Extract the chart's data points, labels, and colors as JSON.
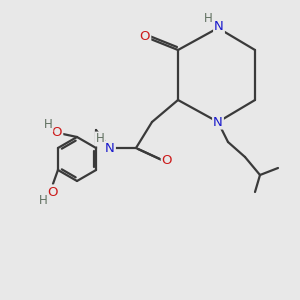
{
  "bg_color": "#e8e8e8",
  "atom_colors": {
    "C": "#3a3a3a",
    "N": "#1a1acc",
    "O": "#cc1a1a",
    "H": "#607060"
  },
  "bond_color": "#3a3a3a",
  "line_width": 1.6,
  "figsize": [
    3.0,
    3.0
  ],
  "dpi": 100
}
